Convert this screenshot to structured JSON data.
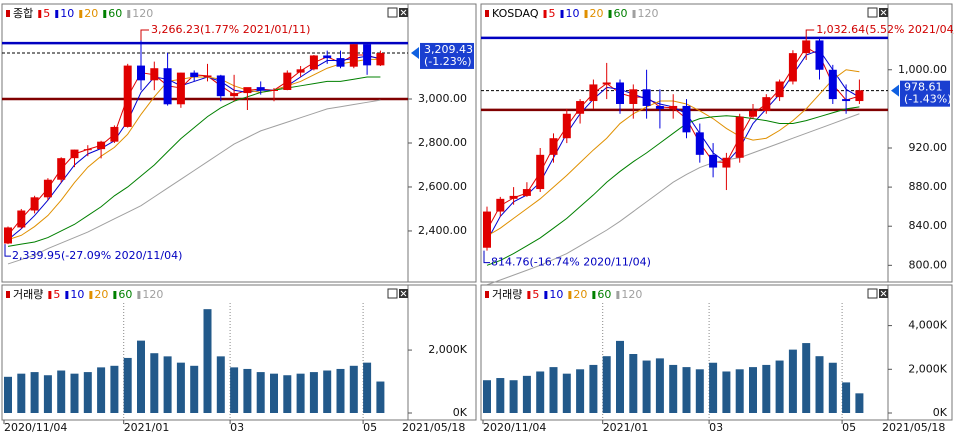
{
  "chart_data": [
    {
      "type": "candlestick",
      "title": "종합",
      "title_color": "#d00000",
      "ohlc": [
        [
          2343,
          2420,
          2340,
          2416
        ],
        [
          2416,
          2500,
          2410,
          2493
        ],
        [
          2493,
          2560,
          2480,
          2553
        ],
        [
          2553,
          2640,
          2540,
          2633
        ],
        [
          2633,
          2735,
          2620,
          2731
        ],
        [
          2731,
          2770,
          2690,
          2770
        ],
        [
          2770,
          2790,
          2740,
          2772
        ],
        [
          2772,
          2810,
          2730,
          2806
        ],
        [
          2806,
          2880,
          2800,
          2873
        ],
        [
          2873,
          3160,
          2870,
          3152
        ],
        [
          3152,
          3266,
          3040,
          3085
        ],
        [
          3085,
          3170,
          3040,
          3140
        ],
        [
          3140,
          3210,
          2970,
          2976
        ],
        [
          2976,
          3120,
          2960,
          3120
        ],
        [
          3120,
          3130,
          3080,
          3100
        ],
        [
          3100,
          3160,
          3080,
          3107
        ],
        [
          3107,
          3110,
          2990,
          3013
        ],
        [
          3013,
          3110,
          2990,
          3027
        ],
        [
          3027,
          3050,
          2950,
          3054
        ],
        [
          3054,
          3080,
          3020,
          3039
        ],
        [
          3039,
          3050,
          2990,
          3041
        ],
        [
          3041,
          3130,
          3040,
          3120
        ],
        [
          3120,
          3150,
          3100,
          3135
        ],
        [
          3135,
          3200,
          3130,
          3198
        ],
        [
          3198,
          3220,
          3160,
          3186
        ],
        [
          3186,
          3220,
          3140,
          3147
        ],
        [
          3147,
          3250,
          3140,
          3249
        ],
        [
          3249,
          3250,
          3110,
          3153
        ],
        [
          3153,
          3220,
          3150,
          3209
        ]
      ],
      "up_color": "#e00000",
      "down_color": "#0000e0",
      "series": [
        {
          "name": "5",
          "color": "#e00000",
          "values": [
            2380,
            2455,
            2523,
            2593,
            2682,
            2750,
            2771,
            2789,
            2840,
            3010,
            3120,
            3110,
            3060,
            3050,
            3110,
            3105,
            3060,
            3020,
            3040,
            3045,
            3040,
            3080,
            3128,
            3165,
            3192,
            3165,
            3200,
            3200,
            3180
          ]
        },
        {
          "name": "10",
          "color": "#0000d0",
          "values": [
            2360,
            2410,
            2470,
            2540,
            2620,
            2700,
            2750,
            2775,
            2810,
            2900,
            3030,
            3100,
            3090,
            3060,
            3080,
            3100,
            3080,
            3040,
            3030,
            3040,
            3040,
            3060,
            3100,
            3140,
            3175,
            3175,
            3185,
            3195,
            3185
          ]
        },
        {
          "name": "20",
          "color": "#e09000",
          "values": [
            2360,
            2380,
            2420,
            2470,
            2540,
            2620,
            2690,
            2740,
            2780,
            2840,
            2930,
            3010,
            3080,
            3090,
            3100,
            3100,
            3090,
            3060,
            3040,
            3030,
            3040,
            3060,
            3080,
            3110,
            3140,
            3160,
            3170,
            3180,
            3180
          ]
        },
        {
          "name": "60",
          "color": "#008000",
          "values": [
            2330,
            2340,
            2350,
            2370,
            2400,
            2430,
            2470,
            2510,
            2560,
            2600,
            2650,
            2700,
            2760,
            2820,
            2870,
            2920,
            2960,
            2990,
            3010,
            3030,
            3040,
            3050,
            3060,
            3070,
            3080,
            3080,
            3090,
            3100,
            3100
          ]
        },
        {
          "name": "120",
          "color": "#a0a0a0",
          "values": [
            2250,
            2270,
            2290,
            2320,
            2345,
            2370,
            2395,
            2425,
            2455,
            2485,
            2515,
            2555,
            2595,
            2635,
            2675,
            2715,
            2755,
            2795,
            2825,
            2855,
            2875,
            2895,
            2915,
            2935,
            2955,
            2965,
            2975,
            2985,
            2995
          ]
        }
      ],
      "hlines": [
        {
          "value": 3254,
          "color": "#0000c0",
          "dashed": false
        },
        {
          "value": 3000,
          "color": "#800000",
          "dashed": false
        },
        {
          "value": 3209.43,
          "color": "#000000",
          "dashed": true
        }
      ],
      "ylim": [
        2177,
        3382
      ],
      "yticks": [
        {
          "value": 2400,
          "label": "2,400.00"
        },
        {
          "value": 2600,
          "label": "2,600.00"
        },
        {
          "value": 2800,
          "label": "2,800.00"
        },
        {
          "value": 3000,
          "label": "3,000.00"
        }
      ],
      "high_label": "3,266.23(1.77% 2021/01/11)",
      "low_label": "2,339.95(-27.09% 2020/11/04)",
      "last_price": "3,209.43",
      "last_change": "(-1.23%)"
    },
    {
      "type": "bar",
      "title": "거래량",
      "title_color": "#d00000",
      "color": "#22598a",
      "values": [
        1150000,
        1250000,
        1300000,
        1200000,
        1350000,
        1250000,
        1300000,
        1450000,
        1500000,
        1750000,
        2300000,
        1900000,
        1800000,
        1600000,
        1500000,
        3300000,
        1800000,
        1450000,
        1400000,
        1300000,
        1250000,
        1200000,
        1250000,
        1300000,
        1350000,
        1400000,
        1500000,
        1600000,
        1000000
      ],
      "legend": [
        {
          "name": "5",
          "color": "#e00000"
        },
        {
          "name": "10",
          "color": "#0000d0"
        },
        {
          "name": "20",
          "color": "#e09000"
        },
        {
          "name": "60",
          "color": "#008000"
        },
        {
          "name": "120",
          "color": "#a0a0a0"
        }
      ],
      "ylim": [
        0,
        3750000
      ],
      "yticks": [
        {
          "value": 0,
          "label": "0K"
        },
        {
          "value": 2000000,
          "label": "2,000K"
        }
      ],
      "xticks": [
        {
          "value": 0,
          "label": "2020/11/04"
        },
        {
          "value": 9,
          "label": "2021/01"
        },
        {
          "value": 17,
          "label": "03"
        },
        {
          "value": 27,
          "label": "05"
        }
      ],
      "end_date": "2021/05/18"
    },
    {
      "type": "candlestick",
      "title": "KOSDAQ",
      "title_color": "#d00000",
      "ohlc": [
        [
          818,
          860,
          815,
          855
        ],
        [
          855,
          870,
          850,
          868
        ],
        [
          868,
          880,
          862,
          871
        ],
        [
          871,
          885,
          870,
          878
        ],
        [
          878,
          920,
          875,
          913
        ],
        [
          913,
          935,
          905,
          930
        ],
        [
          930,
          960,
          925,
          955
        ],
        [
          955,
          970,
          945,
          968
        ],
        [
          968,
          990,
          960,
          985
        ],
        [
          985,
          1007,
          970,
          987
        ],
        [
          987,
          990,
          955,
          965
        ],
        [
          965,
          985,
          950,
          980
        ],
        [
          980,
          1000,
          950,
          963
        ],
        [
          963,
          980,
          940,
          960
        ],
        [
          960,
          975,
          950,
          963
        ],
        [
          963,
          970,
          930,
          936
        ],
        [
          936,
          945,
          905,
          913
        ],
        [
          913,
          925,
          890,
          900
        ],
        [
          900,
          915,
          877,
          910
        ],
        [
          910,
          955,
          905,
          952
        ],
        [
          952,
          965,
          950,
          958
        ],
        [
          958,
          975,
          955,
          972
        ],
        [
          972,
          990,
          968,
          988
        ],
        [
          988,
          1020,
          985,
          1017
        ],
        [
          1017,
          1033,
          1010,
          1030
        ],
        [
          1030,
          1033,
          990,
          1000
        ],
        [
          1000,
          1005,
          965,
          970
        ],
        [
          970,
          985,
          955,
          968
        ],
        [
          968,
          990,
          965,
          979
        ]
      ],
      "up_color": "#e00000",
      "down_color": "#0000e0",
      "series": [
        {
          "name": "5",
          "color": "#e00000",
          "values": [
            836,
            861,
            869,
            874,
            895,
            921,
            942,
            961,
            976,
            986,
            976,
            972,
            972,
            962,
            961,
            950,
            925,
            906,
            905,
            931,
            955,
            965,
            980,
            1002,
            1023,
            1015,
            985,
            969,
            973
          ]
        },
        {
          "name": "10",
          "color": "#0000d0",
          "values": [
            825,
            850,
            865,
            872,
            885,
            910,
            935,
            955,
            970,
            982,
            980,
            975,
            970,
            965,
            962,
            955,
            935,
            915,
            905,
            920,
            945,
            960,
            975,
            995,
            1015,
            1020,
            1000,
            980,
            972
          ]
        },
        {
          "name": "20",
          "color": "#e09000",
          "values": [
            830,
            838,
            848,
            858,
            868,
            880,
            892,
            905,
            918,
            930,
            945,
            955,
            962,
            968,
            968,
            965,
            958,
            950,
            940,
            932,
            928,
            930,
            938,
            948,
            960,
            975,
            990,
            1000,
            998
          ]
        },
        {
          "name": "60",
          "color": "#008000",
          "values": [
            800,
            805,
            812,
            820,
            828,
            838,
            848,
            860,
            872,
            885,
            896,
            906,
            915,
            925,
            935,
            945,
            950,
            952,
            953,
            952,
            950,
            948,
            945,
            945,
            948,
            952,
            956,
            960,
            962
          ]
        },
        {
          "name": "120",
          "color": "#a0a0a0",
          "values": [
            780,
            785,
            790,
            795,
            800,
            806,
            812,
            820,
            828,
            836,
            845,
            855,
            865,
            875,
            885,
            893,
            900,
            905,
            908,
            910,
            915,
            920,
            925,
            930,
            935,
            940,
            945,
            950,
            955
          ]
        }
      ],
      "hlines": [
        {
          "value": 1032.64,
          "color": "#0000c0",
          "dashed": false
        },
        {
          "value": 959,
          "color": "#800000",
          "dashed": false
        },
        {
          "value": 978.61,
          "color": "#000000",
          "dashed": true
        }
      ],
      "ylim": [
        785,
        1056
      ],
      "yticks": [
        {
          "value": 800,
          "label": "800.00"
        },
        {
          "value": 840,
          "label": "840.00"
        },
        {
          "value": 880,
          "label": "880.00"
        },
        {
          "value": 920,
          "label": "920.00"
        },
        {
          "value": 1000,
          "label": "1,000.00"
        }
      ],
      "high_label": "1,032.64(5.52% 2021/04/19)",
      "low_label": "814.76(-16.74% 2020/11/04)",
      "last_price": "978.61",
      "last_change": "(-1.43%)"
    },
    {
      "type": "bar",
      "title": "거래량",
      "title_color": "#d00000",
      "color": "#22598a",
      "values": [
        1500000,
        1600000,
        1500000,
        1700000,
        1900000,
        2100000,
        1800000,
        2000000,
        2200000,
        2600000,
        3300000,
        2700000,
        2400000,
        2500000,
        2200000,
        2100000,
        2000000,
        2300000,
        1900000,
        2000000,
        2100000,
        2200000,
        2400000,
        2900000,
        3200000,
        2600000,
        2300000,
        1400000,
        900000
      ],
      "legend": [
        {
          "name": "5",
          "color": "#e00000"
        },
        {
          "name": "10",
          "color": "#0000d0"
        },
        {
          "name": "20",
          "color": "#e09000"
        },
        {
          "name": "60",
          "color": "#008000"
        },
        {
          "name": "120",
          "color": "#a0a0a0"
        }
      ],
      "ylim": [
        0,
        5400000
      ],
      "yticks": [
        {
          "value": 0,
          "label": "0K"
        },
        {
          "value": 2000000,
          "label": "2,000K"
        },
        {
          "value": 4000000,
          "label": "4,000K"
        }
      ],
      "xticks": [
        {
          "value": 0,
          "label": "2020/11/04"
        },
        {
          "value": 9,
          "label": "2021/01"
        },
        {
          "value": 17,
          "label": "03"
        },
        {
          "value": 27,
          "label": "05"
        }
      ],
      "end_date": "2021/05/18"
    }
  ]
}
